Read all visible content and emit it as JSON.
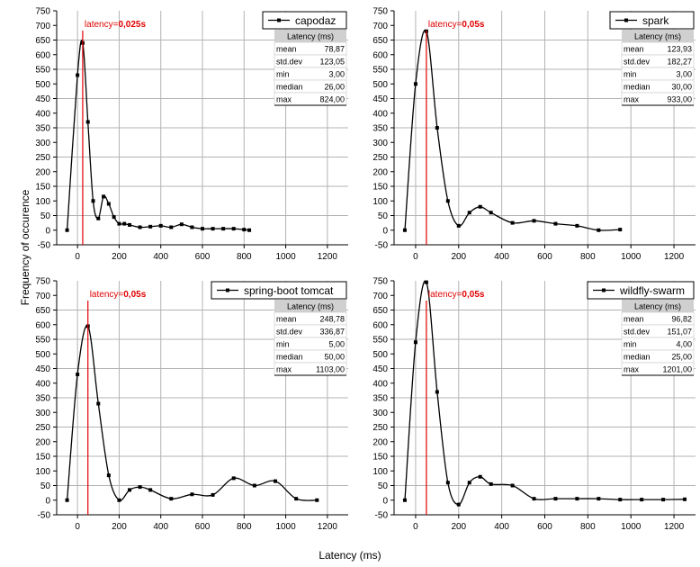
{
  "figure": {
    "ylabel": "Frequency of occurence",
    "xlabel": "Latency (ms)"
  },
  "chart_data": [
    {
      "type": "line",
      "series": [
        {
          "name": "capodaz",
          "x": [
            -50,
            0,
            25,
            50,
            75,
            100,
            125,
            150,
            175,
            200,
            225,
            250,
            300,
            350,
            400,
            450,
            500,
            550,
            600,
            650,
            700,
            750,
            800,
            825
          ],
          "y": [
            0,
            530,
            640,
            370,
            100,
            40,
            115,
            90,
            45,
            22,
            22,
            18,
            10,
            12,
            15,
            10,
            20,
            10,
            5,
            5,
            5,
            5,
            2,
            0
          ]
        }
      ],
      "xlim": [
        -100,
        1300
      ],
      "ylim": [
        -50,
        750
      ],
      "xticks": [
        0,
        200,
        400,
        600,
        800,
        1000,
        1200
      ],
      "yticks": [
        -50,
        0,
        50,
        100,
        150,
        200,
        250,
        300,
        350,
        400,
        450,
        500,
        550,
        600,
        650,
        700,
        750
      ],
      "annotation": {
        "x": 25,
        "prefix": "latency=",
        "value": "0,025s"
      },
      "stats": {
        "header": "Latency (ms)",
        "rows": [
          [
            "mean",
            "78,87"
          ],
          [
            "std.dev",
            "123,05"
          ],
          [
            "min",
            "3,00"
          ],
          [
            "median",
            "26,00"
          ],
          [
            "max",
            "824,00"
          ]
        ]
      },
      "grid": true
    },
    {
      "type": "line",
      "series": [
        {
          "name": "spark",
          "x": [
            -50,
            0,
            50,
            100,
            150,
            200,
            250,
            300,
            350,
            450,
            550,
            650,
            750,
            850,
            950
          ],
          "y": [
            0,
            500,
            680,
            350,
            100,
            15,
            60,
            80,
            60,
            25,
            32,
            22,
            15,
            0,
            2
          ]
        }
      ],
      "xlim": [
        -100,
        1300
      ],
      "ylim": [
        -50,
        750
      ],
      "xticks": [
        0,
        200,
        400,
        600,
        800,
        1000,
        1200
      ],
      "yticks": [
        -50,
        0,
        50,
        100,
        150,
        200,
        250,
        300,
        350,
        400,
        450,
        500,
        550,
        600,
        650,
        700,
        750
      ],
      "annotation": {
        "x": 50,
        "prefix": "latency=",
        "value": "0,05s"
      },
      "stats": {
        "header": "Latency (ms)",
        "rows": [
          [
            "mean",
            "123,93"
          ],
          [
            "std.dev",
            "182,27"
          ],
          [
            "min",
            "3,00"
          ],
          [
            "median",
            "30,00"
          ],
          [
            "max",
            "933,00"
          ]
        ]
      },
      "grid": true
    },
    {
      "type": "line",
      "series": [
        {
          "name": "spring-boot tomcat",
          "x": [
            -50,
            0,
            50,
            100,
            150,
            200,
            250,
            300,
            350,
            450,
            550,
            650,
            750,
            850,
            950,
            1050,
            1150
          ],
          "y": [
            0,
            430,
            595,
            330,
            85,
            0,
            35,
            45,
            35,
            5,
            20,
            18,
            75,
            50,
            65,
            5,
            0
          ]
        }
      ],
      "xlim": [
        -100,
        1300
      ],
      "ylim": [
        -50,
        750
      ],
      "xticks": [
        0,
        200,
        400,
        600,
        800,
        1000,
        1200
      ],
      "yticks": [
        -50,
        0,
        50,
        100,
        150,
        200,
        250,
        300,
        350,
        400,
        450,
        500,
        550,
        600,
        650,
        700,
        750
      ],
      "annotation": {
        "x": 50,
        "prefix": "latency=",
        "value": "0,05s"
      },
      "stats": {
        "header": "Latency (ms)",
        "rows": [
          [
            "mean",
            "248,78"
          ],
          [
            "std.dev",
            "336,87"
          ],
          [
            "min",
            "5,00"
          ],
          [
            "median",
            "50,00"
          ],
          [
            "max",
            "1103,00"
          ]
        ]
      },
      "grid": true
    },
    {
      "type": "line",
      "series": [
        {
          "name": "wildfly-swarm",
          "x": [
            -50,
            0,
            50,
            100,
            150,
            200,
            250,
            300,
            350,
            450,
            550,
            650,
            750,
            850,
            950,
            1050,
            1150,
            1250
          ],
          "y": [
            0,
            540,
            745,
            370,
            60,
            -15,
            60,
            80,
            55,
            50,
            5,
            5,
            5,
            5,
            2,
            2,
            2,
            3
          ]
        }
      ],
      "xlim": [
        -100,
        1300
      ],
      "ylim": [
        -50,
        750
      ],
      "xticks": [
        0,
        200,
        400,
        600,
        800,
        1000,
        1200
      ],
      "yticks": [
        -50,
        0,
        50,
        100,
        150,
        200,
        250,
        300,
        350,
        400,
        450,
        500,
        550,
        600,
        650,
        700,
        750
      ],
      "annotation": {
        "x": 50,
        "prefix": "latency=",
        "value": "0,05s"
      },
      "stats": {
        "header": "Latency (ms)",
        "rows": [
          [
            "mean",
            "96,82"
          ],
          [
            "std.dev",
            "151,07"
          ],
          [
            "min",
            "4,00"
          ],
          [
            "median",
            "25,00"
          ],
          [
            "max",
            "1201,00"
          ]
        ]
      },
      "grid": true
    }
  ]
}
